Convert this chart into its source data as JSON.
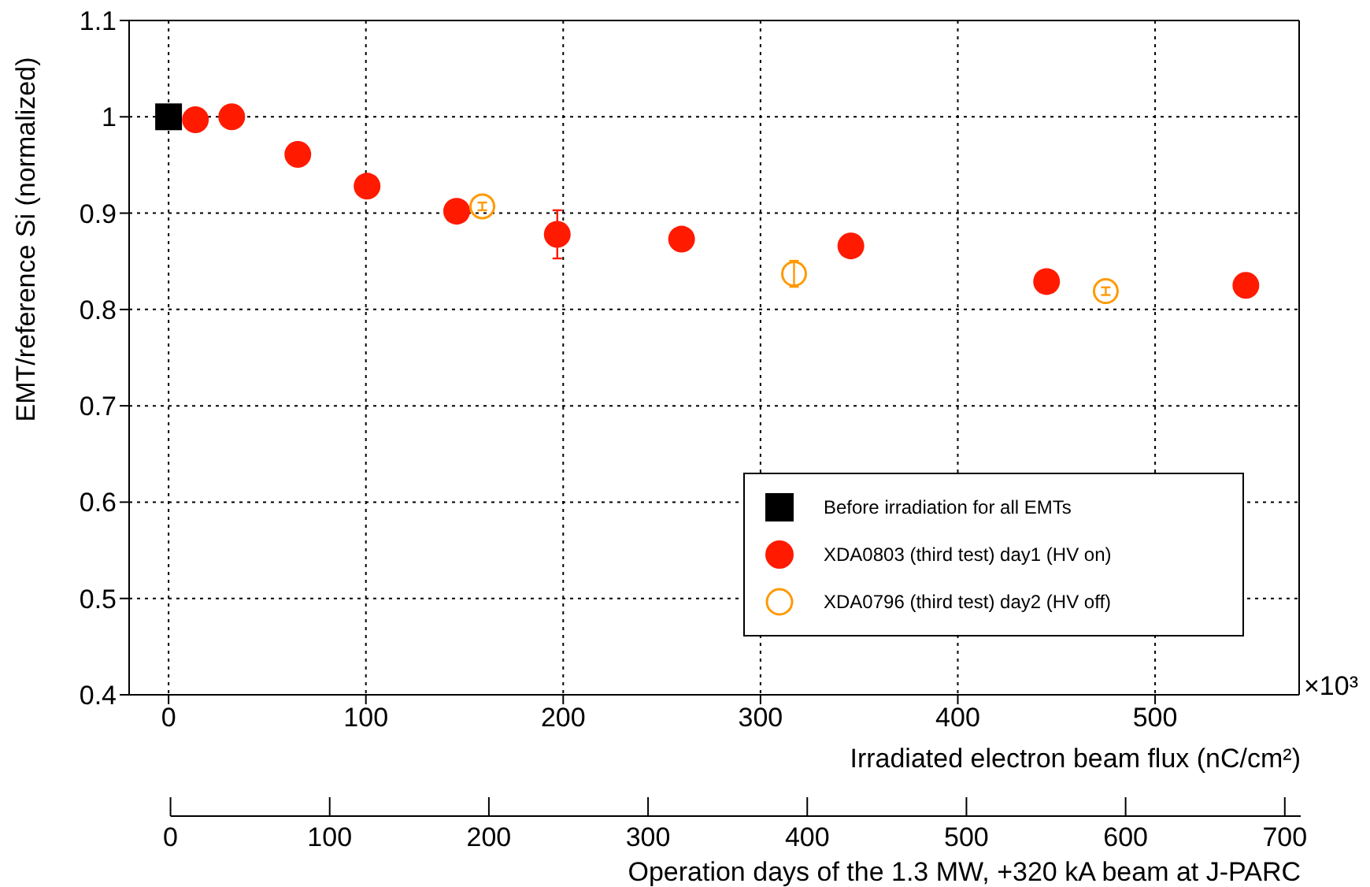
{
  "chart_data": {
    "type": "scatter",
    "xlabel": "Irradiated electron beam flux (nC/cm²)",
    "ylabel": "EMT/reference Si (normalized)",
    "x2label": "Operation days of the 1.3 MW, +320 kA beam at J-PARC",
    "xlim": [
      -20,
      573
    ],
    "xticks": [
      0,
      100,
      200,
      300,
      400,
      500
    ],
    "ylim": [
      0.4,
      1.1
    ],
    "yticks": [
      0.4,
      0.5,
      0.6,
      0.7,
      0.8,
      0.9,
      1,
      1.1
    ],
    "x2lim": [
      -26,
      710
    ],
    "x2ticks": [
      0,
      100,
      200,
      300,
      400,
      500,
      600,
      700
    ],
    "grid": true,
    "legend": "bottom right",
    "annotations": [
      "×10³"
    ],
    "series": [
      {
        "name": "Before irradiation for all EMTs",
        "color": "#000000",
        "marker": "square",
        "x": [
          0
        ],
        "values": [
          1.0
        ]
      },
      {
        "name": "XDA0803 (third test) day1 (HV on)",
        "color": "#ff1a00",
        "marker": "circle",
        "x": [
          13.6,
          32,
          65.5,
          100.6,
          146,
          197,
          260,
          345.8,
          445,
          546
        ],
        "values": [
          0.997,
          1.0,
          0.961,
          0.928,
          0.902,
          0.878,
          0.873,
          0.866,
          0.829,
          0.825
        ],
        "errors": [
          null,
          null,
          null,
          null,
          null,
          0.025,
          null,
          null,
          null,
          null
        ]
      },
      {
        "name": "XDA0796 (third test) day2 (HV off)",
        "color": "#ff9900",
        "marker": "open circle",
        "x": [
          159,
          317,
          475
        ],
        "values": [
          0.907,
          0.837,
          0.819
        ],
        "errors": [
          0.004,
          0.0135,
          0.004
        ]
      }
    ]
  }
}
